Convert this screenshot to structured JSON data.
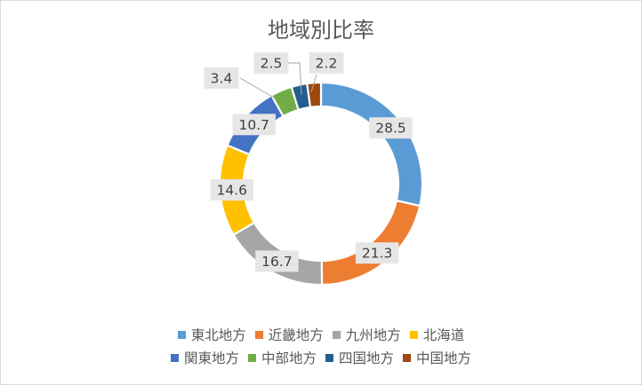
{
  "chart_data": {
    "type": "pie",
    "variant": "doughnut",
    "title": "地域別比率",
    "categories": [
      "東北地方",
      "近畿地方",
      "九州地方",
      "北海道",
      "関東地方",
      "中部地方",
      "四国地方",
      "中国地方"
    ],
    "values": [
      28.5,
      21.3,
      16.7,
      14.6,
      10.7,
      3.4,
      2.5,
      2.2
    ],
    "colors": [
      "#5b9bd5",
      "#ed7d31",
      "#a5a5a5",
      "#ffc000",
      "#4472c4",
      "#70ad47",
      "#255e91",
      "#9e480e"
    ],
    "legend_position": "bottom",
    "data_labels": true
  }
}
